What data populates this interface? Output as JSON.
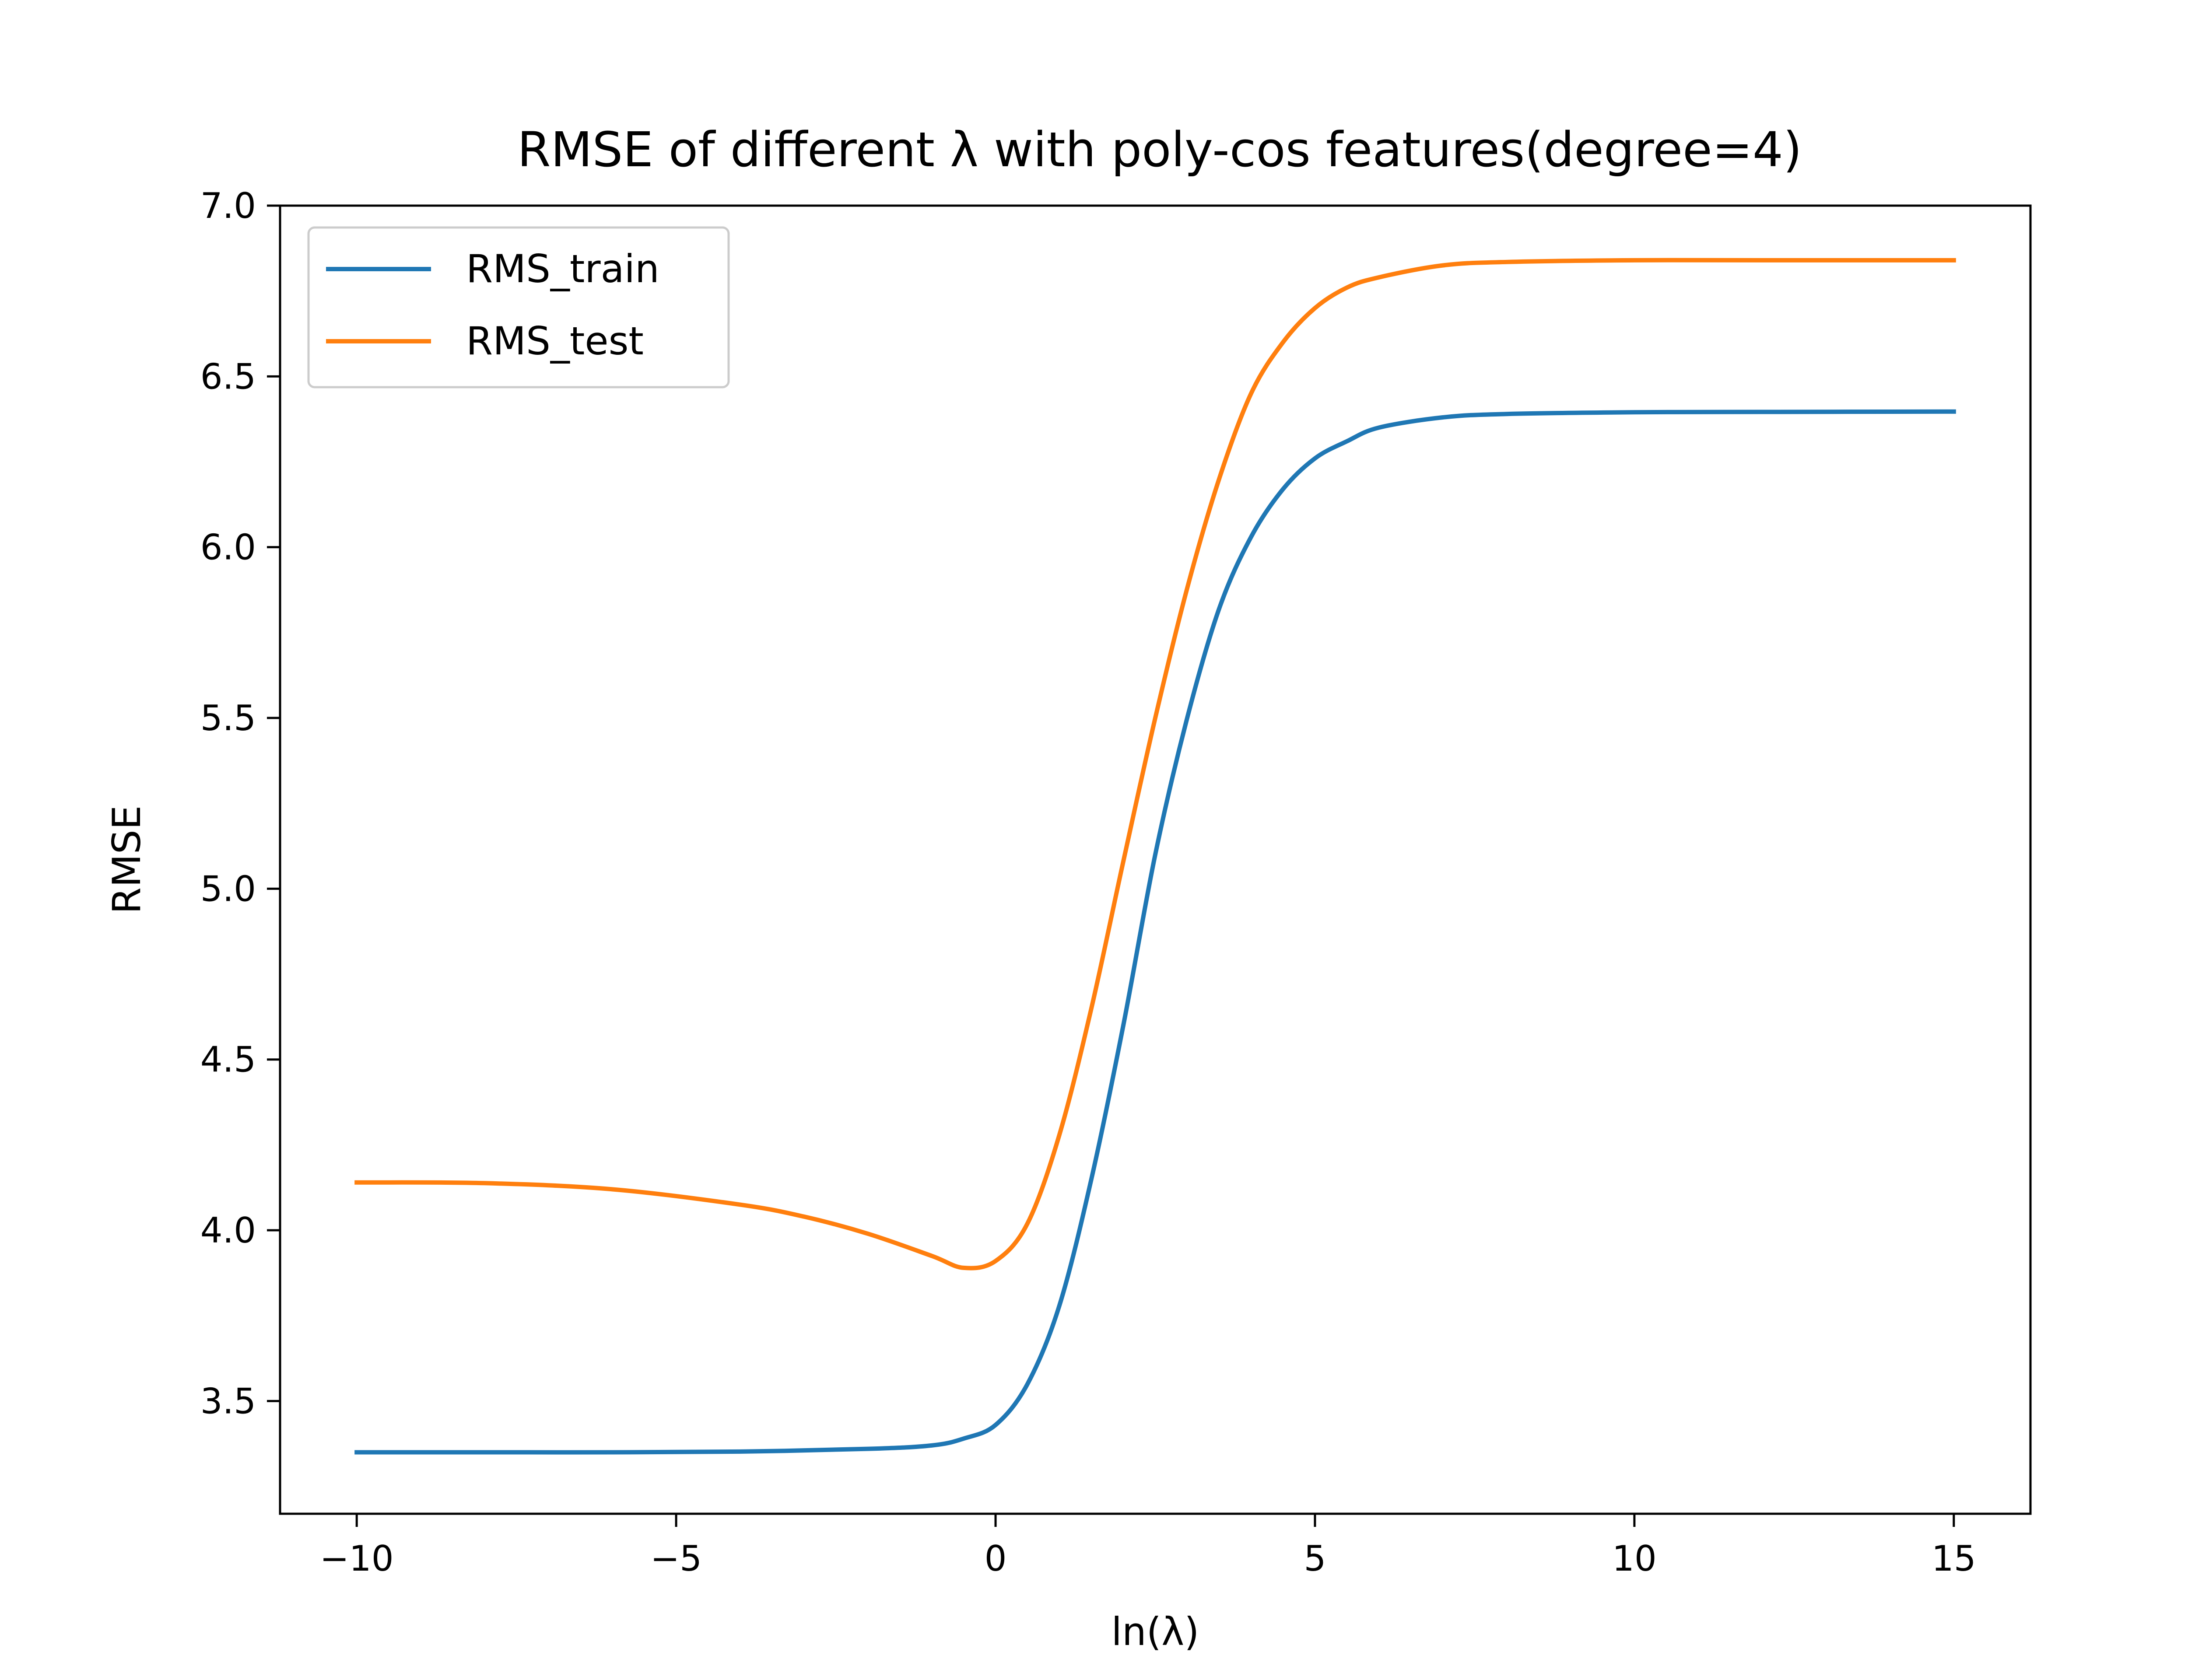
{
  "chart_data": {
    "type": "line",
    "title": "RMSE of different λ with poly-cos features(degree=4)",
    "xlabel": "ln(λ)",
    "ylabel": "RMSE",
    "xlim": [
      -11.2,
      16.2
    ],
    "ylim": [
      3.17,
      7.0
    ],
    "xticks": [
      -10,
      -5,
      0,
      5,
      10,
      15
    ],
    "xtick_labels": [
      "−10",
      "−5",
      "0",
      "5",
      "10",
      "15"
    ],
    "yticks": [
      3.5,
      4.0,
      4.5,
      5.0,
      5.5,
      6.0,
      6.5,
      7.0
    ],
    "ytick_labels": [
      "3.5",
      "4.0",
      "4.5",
      "5.0",
      "5.5",
      "6.0",
      "6.5",
      "7.0"
    ],
    "grid": false,
    "legend": "top-left",
    "series": [
      {
        "name": "RMS_train",
        "color": "#1f77b4",
        "x": [
          -10,
          -8,
          -6,
          -4,
          -2,
          -1,
          -0.5,
          0,
          0.5,
          1,
          1.5,
          2,
          2.5,
          3,
          3.5,
          4,
          4.5,
          5,
          5.5,
          6,
          7,
          8,
          10,
          12,
          15
        ],
        "y": [
          3.35,
          3.35,
          3.35,
          3.352,
          3.36,
          3.37,
          3.39,
          3.43,
          3.55,
          3.78,
          4.15,
          4.6,
          5.1,
          5.5,
          5.82,
          6.03,
          6.17,
          6.26,
          6.31,
          6.35,
          6.38,
          6.39,
          6.395,
          6.396,
          6.397
        ]
      },
      {
        "name": "RMS_test",
        "color": "#ff7f0e",
        "x": [
          -10,
          -8,
          -6,
          -4,
          -3,
          -2,
          -1,
          -0.5,
          0,
          0.5,
          1,
          1.5,
          2,
          2.5,
          3,
          3.5,
          4,
          4.5,
          5,
          5.5,
          6,
          7,
          8,
          10,
          12,
          15
        ],
        "y": [
          4.14,
          4.138,
          4.12,
          4.075,
          4.04,
          3.99,
          3.925,
          3.89,
          3.91,
          4.02,
          4.28,
          4.65,
          5.08,
          5.5,
          5.88,
          6.2,
          6.45,
          6.6,
          6.7,
          6.76,
          6.79,
          6.825,
          6.835,
          6.84,
          6.84,
          6.84
        ]
      }
    ]
  }
}
